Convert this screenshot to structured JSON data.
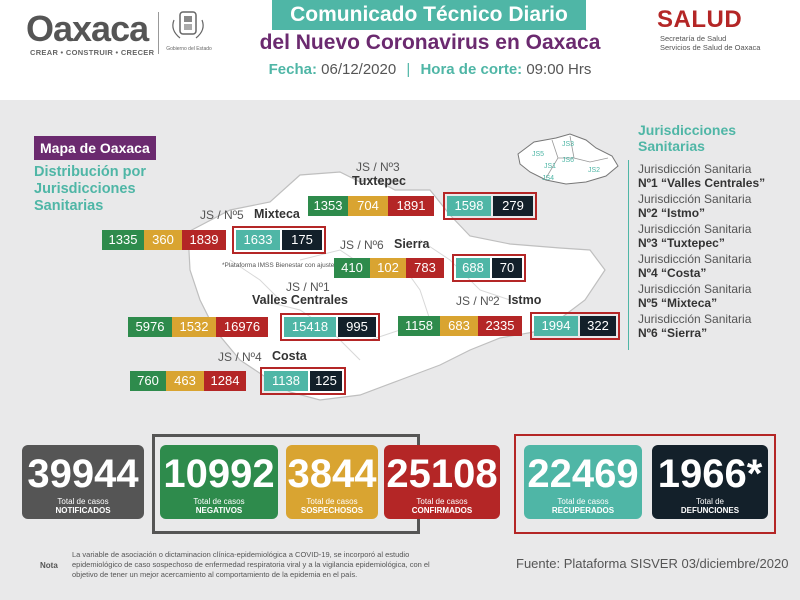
{
  "header": {
    "logo_text": "Oaxaca",
    "logo_tagline": "CREAR • CONSTRUIR • CRECER",
    "seal_text": "Gobierno del Estado",
    "title_line1": "Comunicado Técnico Diario",
    "title_line2": "del Nuevo Coronavirus en Oaxaca",
    "date_label": "Fecha:",
    "date_value": "06/12/2020",
    "cut_label": "Hora de corte:",
    "cut_value": "09:00 Hrs",
    "salud_title": "SALUD",
    "salud_sub1": "Secretaría de Salud",
    "salud_sub2": "Servicios de Salud de Oaxaca"
  },
  "map_section": {
    "map_label": "Mapa de Oaxaca",
    "dist_title": "Distribución por Jurisdicciones Sanitarias",
    "star_note": "*Plataforma IMSS Bienestar con ajuste"
  },
  "jurisdictions": {
    "tuxtepec": {
      "code": "JS / Nº3",
      "name": "Tuxtepec",
      "values": [
        "1353",
        "704",
        "1891",
        "1598",
        "279"
      ]
    },
    "mixteca": {
      "code": "JS / Nº5",
      "name": "Mixteca",
      "values": [
        "1335",
        "360",
        "1839",
        "1633",
        "175"
      ]
    },
    "sierra": {
      "code": "JS / Nº6",
      "name": "Sierra",
      "values": [
        "410",
        "102",
        "783",
        "688",
        "70"
      ]
    },
    "valles": {
      "code": "JS / Nº1",
      "name": "Valles Centrales",
      "values": [
        "5976",
        "1532",
        "16976",
        "15418",
        "995"
      ]
    },
    "istmo": {
      "code": "JS / Nº2",
      "name": "Istmo",
      "values": [
        "1158",
        "683",
        "2335",
        "1994",
        "322"
      ]
    },
    "costa": {
      "code": "JS / Nº4",
      "name": "Costa",
      "values": [
        "760",
        "463",
        "1284",
        "1138",
        "125"
      ]
    }
  },
  "legend": {
    "title": "Jurisdicciones Sanitarias",
    "mini_labels": [
      "JS3",
      "JS5",
      "JS1",
      "JS6",
      "JS2",
      "JS4"
    ],
    "items": [
      {
        "prefix": "Jurisdicción Sanitaria",
        "name": "Nº1 “Valles Centrales”"
      },
      {
        "prefix": "Jurisdicción Sanitaria",
        "name": "Nº2 “Istmo”"
      },
      {
        "prefix": "Jurisdicción Sanitaria",
        "name": "Nº3 “Tuxtepec”"
      },
      {
        "prefix": "Jurisdicción Sanitaria",
        "name": "Nº4 “Costa”"
      },
      {
        "prefix": "Jurisdicción Sanitaria",
        "name": "Nº5 “Mixteca”"
      },
      {
        "prefix": "Jurisdicción Sanitaria",
        "name": "Nº6 “Sierra”"
      }
    ]
  },
  "totals": [
    {
      "value": "39944",
      "label1": "Total de casos",
      "label2": "NOTIFICADOS",
      "color": "#555555"
    },
    {
      "value": "10992",
      "label1": "Total de casos",
      "label2": "NEGATIVOS",
      "color": "#2e8b4c"
    },
    {
      "value": "3844",
      "label1": "Total de casos",
      "label2": "SOSPECHOSOS",
      "color": "#d9a431"
    },
    {
      "value": "25108",
      "label1": "Total de casos",
      "label2": "CONFIRMADOS",
      "color": "#b42626"
    },
    {
      "value": "22469",
      "label1": "Total de casos",
      "label2": "RECUPERADOS",
      "color": "#4fb6a6"
    },
    {
      "value": "1966*",
      "label1": "Total de",
      "label2": "DEFUNCIONES",
      "color": "#13202a"
    }
  ],
  "footer": {
    "note_label": "Nota",
    "note_text": "La variable de asociación o dictaminacion clínica-epidemiológica a COVID-19, se incorporó al estudio epidemiológico de caso sospechoso de enfermedad respiratoria viral y a la vigilancia epidemiológica, con el objetivo de tener un mejor acercamiento al comportamiento de la epidemia en el país.",
    "source": "Fuente: Plataforma SISVER 03/diciembre/2020"
  }
}
